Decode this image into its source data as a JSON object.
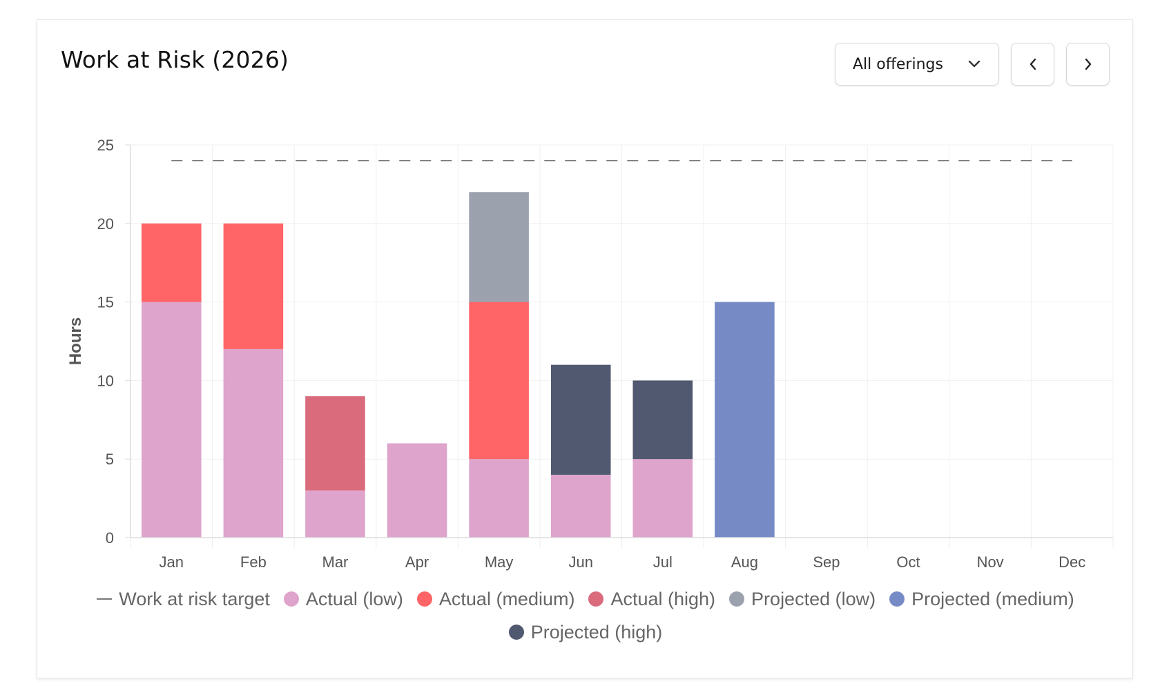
{
  "card": {
    "title": "Work at Risk (2026)"
  },
  "controls": {
    "dropdown_label": "All offerings",
    "dropdown_icon": "chevron-down-icon",
    "prev_icon": "chevron-left-icon",
    "next_icon": "chevron-right-icon"
  },
  "chart_data": {
    "type": "bar",
    "stacked": true,
    "categories": [
      "Jan",
      "Feb",
      "Mar",
      "Apr",
      "May",
      "Jun",
      "Jul",
      "Aug",
      "Sep",
      "Oct",
      "Nov",
      "Dec"
    ],
    "ylabel": "Hours",
    "xlabel": "",
    "ylim": [
      0,
      25
    ],
    "yticks": [
      0,
      5,
      10,
      15,
      20,
      25
    ],
    "grid": true,
    "legend_position": "bottom",
    "target": {
      "name": "Work at risk target",
      "value": 24,
      "style": "dashed",
      "color": "#777777"
    },
    "series": [
      {
        "name": "Actual (low)",
        "color": "#dea4cc",
        "values": [
          15,
          12,
          3,
          6,
          5,
          4,
          5,
          0,
          0,
          0,
          0,
          0
        ]
      },
      {
        "name": "Actual (medium)",
        "color": "#ff6466",
        "values": [
          5,
          8,
          0,
          0,
          10,
          0,
          0,
          0,
          0,
          0,
          0,
          0
        ]
      },
      {
        "name": "Actual (high)",
        "color": "#d96b7c",
        "values": [
          0,
          0,
          6,
          0,
          0,
          0,
          0,
          0,
          0,
          0,
          0,
          0
        ]
      },
      {
        "name": "Projected (low)",
        "color": "#9ca1ae",
        "values": [
          0,
          0,
          0,
          0,
          7,
          0,
          0,
          0,
          0,
          0,
          0,
          0
        ]
      },
      {
        "name": "Projected (medium)",
        "color": "#768bc6",
        "values": [
          0,
          0,
          0,
          0,
          0,
          0,
          0,
          15,
          0,
          0,
          0,
          0
        ]
      },
      {
        "name": "Projected (high)",
        "color": "#50596f",
        "values": [
          0,
          0,
          0,
          0,
          0,
          7,
          5,
          0,
          0,
          0,
          0,
          0
        ]
      }
    ]
  }
}
